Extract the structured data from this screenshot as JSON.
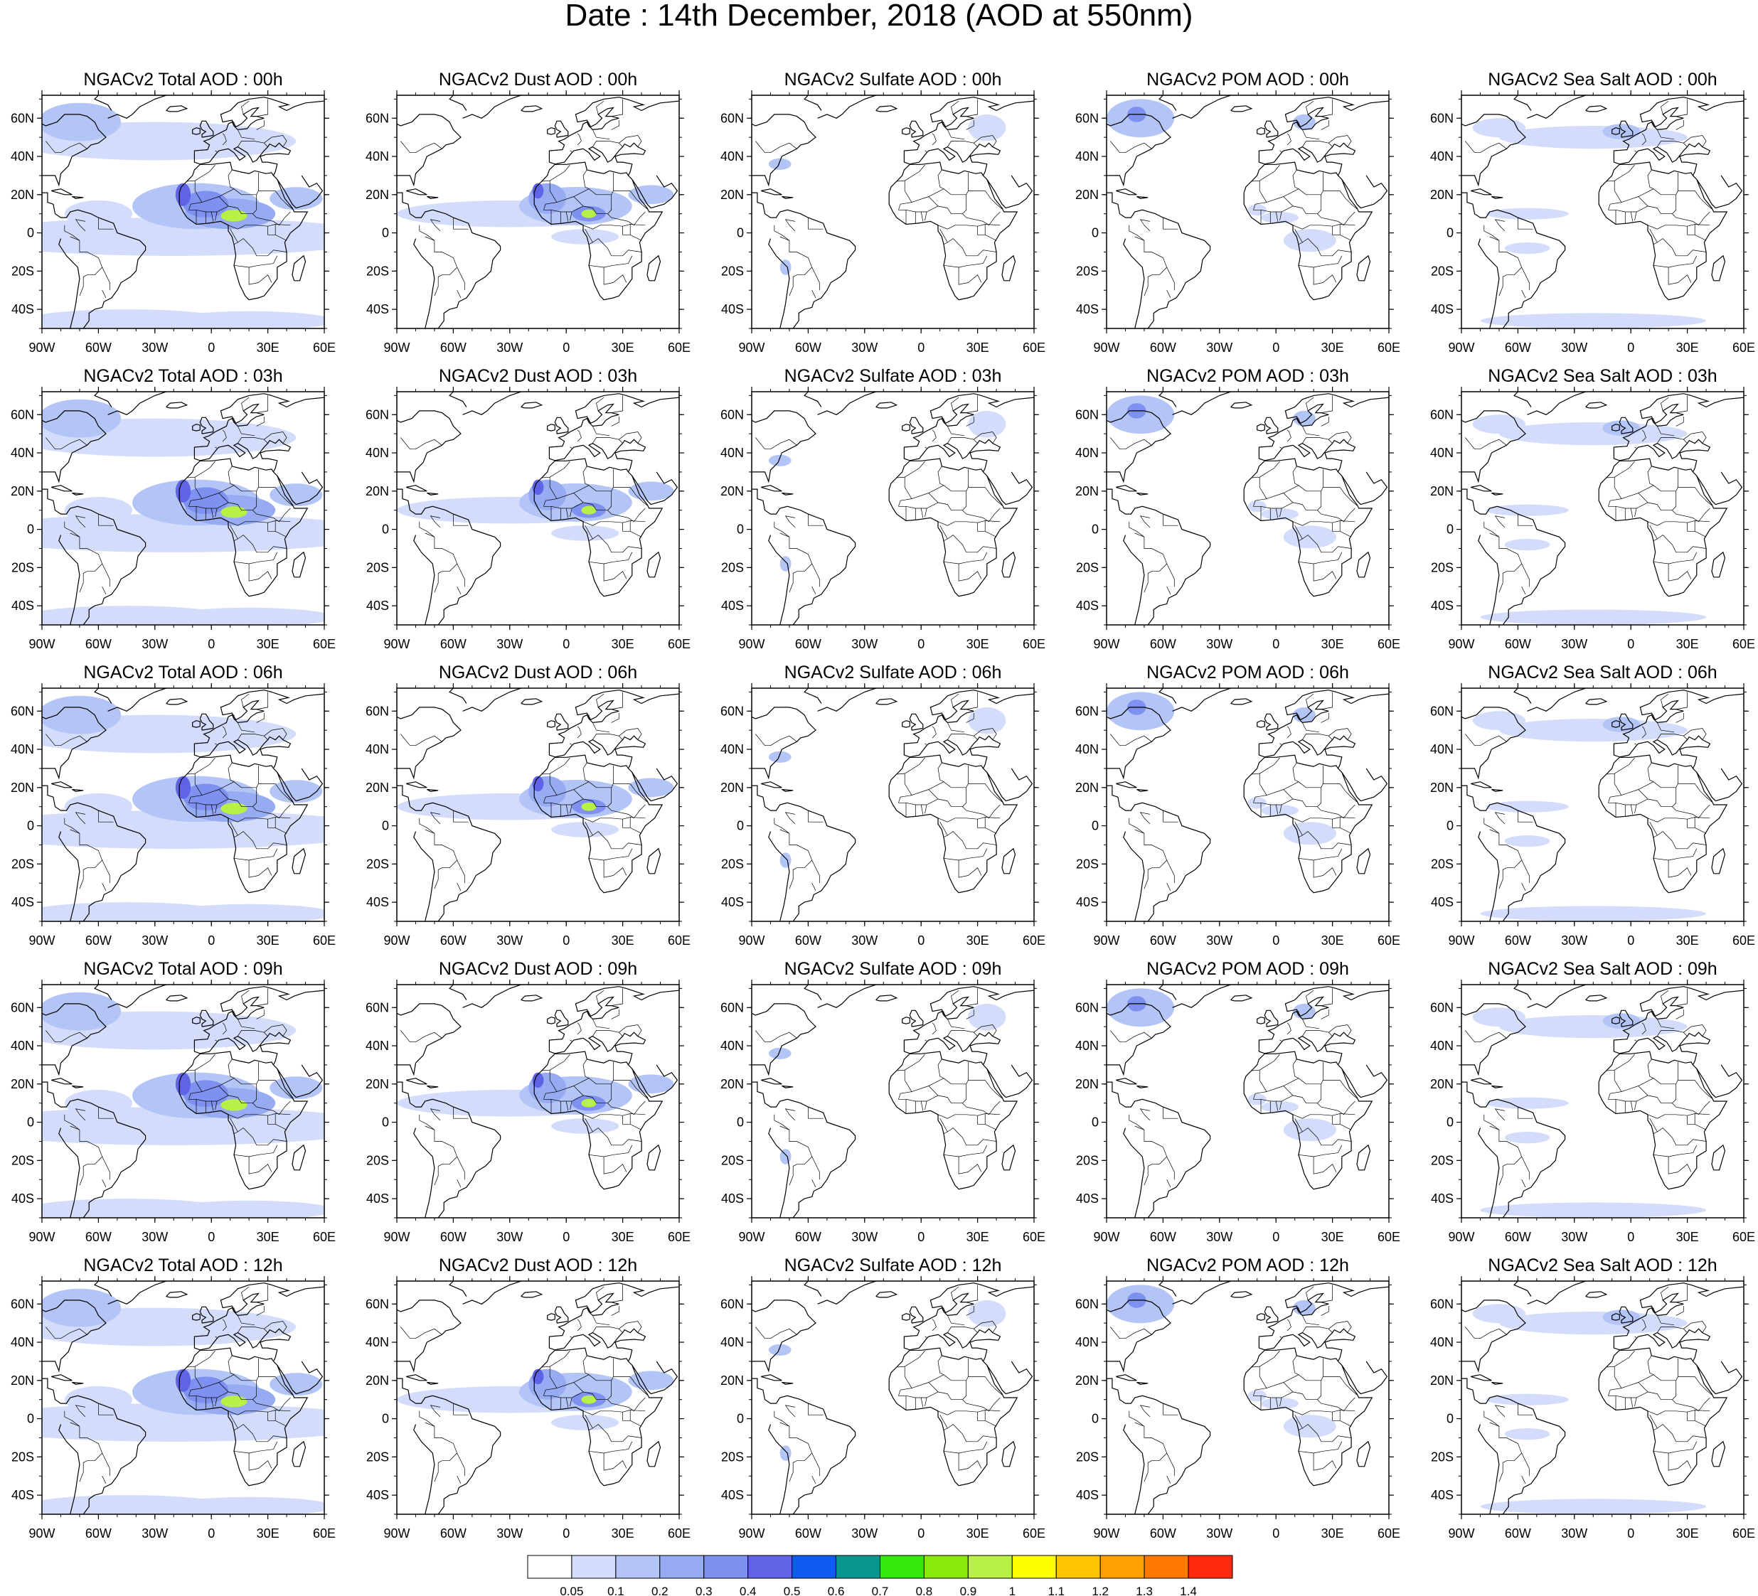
{
  "title": "Date : 14th December, 2018 (AOD at 550nm)",
  "panels": [
    [
      "NGACv2 Total AOD : 00h",
      "NGACv2 Dust AOD : 00h",
      "NGACv2 Sulfate AOD : 00h",
      "NGACv2 POM AOD : 00h",
      "NGACv2 Sea Salt AOD : 00h"
    ],
    [
      "NGACv2 Total AOD : 03h",
      "NGACv2 Dust AOD : 03h",
      "NGACv2 Sulfate AOD : 03h",
      "NGACv2 POM AOD : 03h",
      "NGACv2 Sea Salt AOD : 03h"
    ],
    [
      "NGACv2 Total AOD : 06h",
      "NGACv2 Dust AOD : 06h",
      "NGACv2 Sulfate AOD : 06h",
      "NGACv2 POM AOD : 06h",
      "NGACv2 Sea Salt AOD : 06h"
    ],
    [
      "NGACv2 Total AOD : 09h",
      "NGACv2 Dust AOD : 09h",
      "NGACv2 Sulfate AOD : 09h",
      "NGACv2 POM AOD : 09h",
      "NGACv2 Sea Salt  AOD : 09h"
    ],
    [
      "NGACv2 Total AOD  : 12h",
      "NGACv2 Dust AOD : 12h",
      "NGACv2 Sulfate AOD : 12h",
      "NGACv2 POM  AOD : 12h",
      "NGACv2 Sea Salt  AOD : 12h"
    ]
  ],
  "lat_ticks": [
    "60N",
    "40N",
    "20N",
    "0",
    "20S",
    "40S"
  ],
  "lon_ticks": [
    "90W",
    "60W",
    "30W",
    "0",
    "30E",
    "60E"
  ],
  "colorbar": {
    "colors": [
      "#ffffff",
      "#d3ddfb",
      "#b3c4f6",
      "#97abf3",
      "#7f91f0",
      "#5f64e6",
      "#0f5cf2",
      "#0a9690",
      "#33e80c",
      "#8be80c",
      "#b8f045",
      "#ffff00",
      "#ffc400",
      "#ffa000",
      "#ff7800",
      "#ff2a10"
    ],
    "labels": [
      "0.05",
      "0.1",
      "0.2",
      "0.3",
      "0.4",
      "0.5",
      "0.6",
      "0.7",
      "0.8",
      "0.9",
      "1",
      "1.1",
      "1.2",
      "1.3",
      "1.4"
    ]
  }
}
